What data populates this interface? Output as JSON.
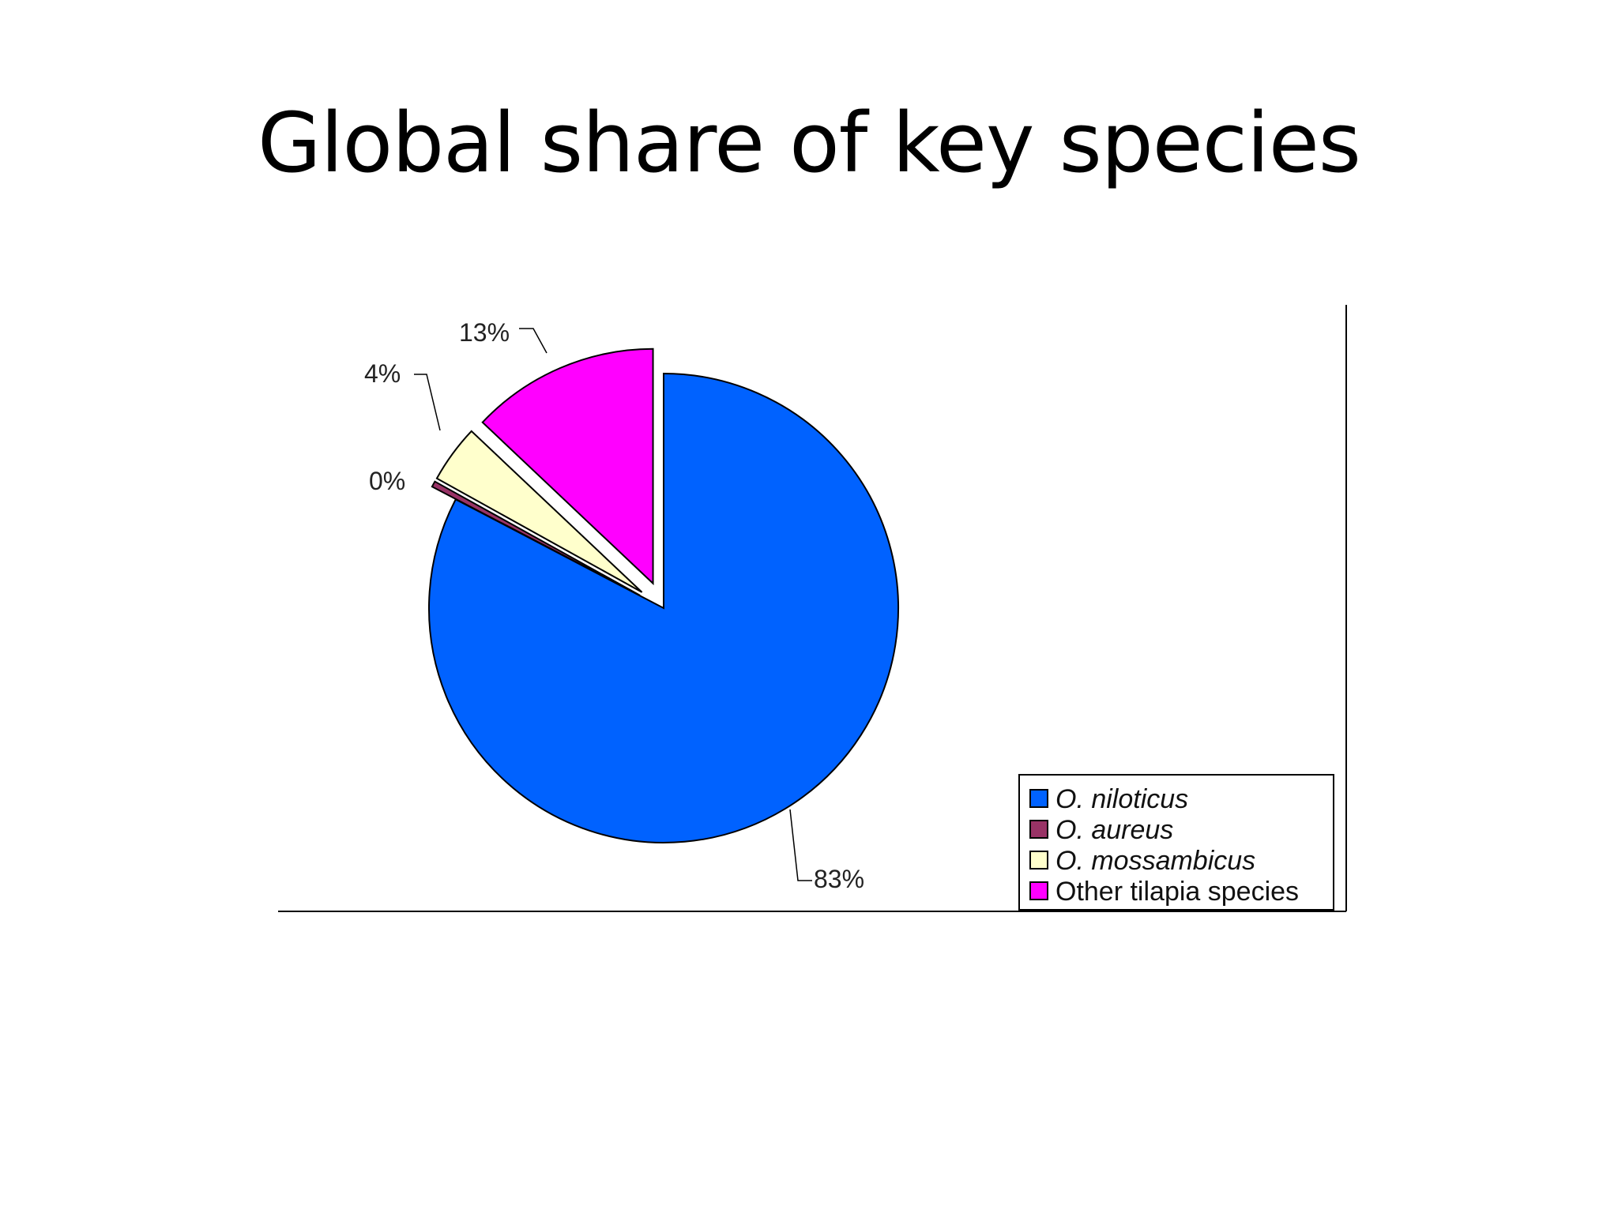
{
  "slide": {
    "title": "Global share of key species"
  },
  "chart_data": {
    "type": "pie",
    "title": "",
    "series": [
      {
        "name": "O. niloticus",
        "value": 83,
        "label": "83%",
        "color": "#0062FF",
        "exploded": false
      },
      {
        "name": "O. aureus",
        "value": 0.4,
        "label": "0%",
        "color": "#993366",
        "exploded": true
      },
      {
        "name": "O. mossambicus",
        "value": 4,
        "label": "4%",
        "color": "#FFFFCC",
        "exploded": true
      },
      {
        "name": "Other tilapia species",
        "value": 13,
        "label": "13%",
        "color": "#FF00FF",
        "exploded": true
      }
    ],
    "legend": {
      "placement": "bottom-right",
      "entries": [
        {
          "label": "O. niloticus",
          "italic": true
        },
        {
          "label": "O. aureus",
          "italic": true
        },
        {
          "label": "O. mossambicus",
          "italic": true
        },
        {
          "label": "Other tilapia species",
          "italic": false
        }
      ]
    }
  }
}
